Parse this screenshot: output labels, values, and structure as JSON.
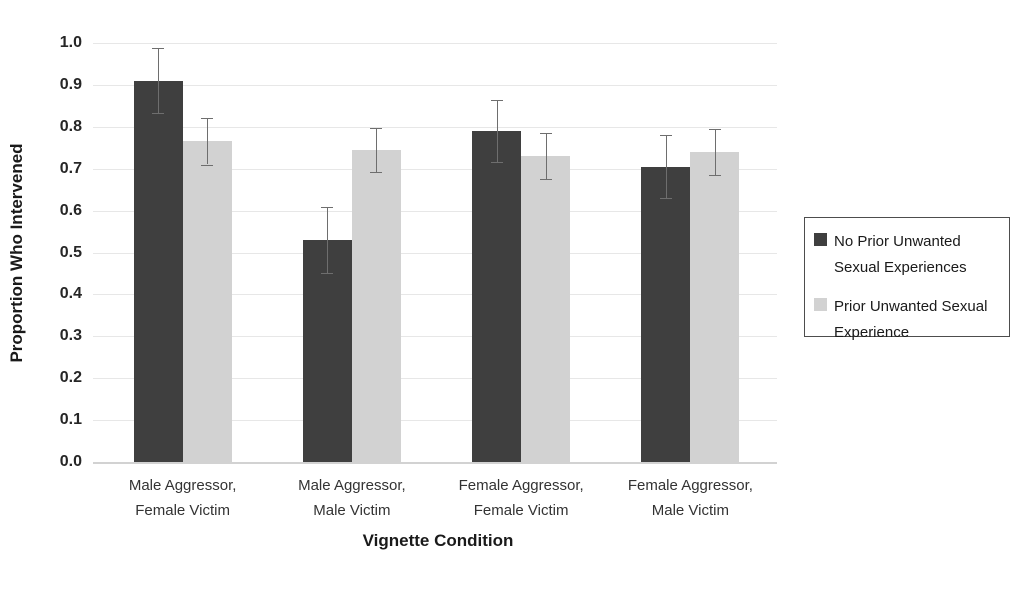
{
  "figure": {
    "background": "#ffffff"
  },
  "chart_data": {
    "type": "bar",
    "title": "",
    "xlabel": "Vignette Condition",
    "ylabel": "Proportion Who Intervened",
    "categories": [
      "Male Aggressor,\nFemale Victim",
      "Male Aggressor,\nMale Victim",
      "Female Aggressor,\nFemale Victim",
      "Female Aggressor,\nMale Victim"
    ],
    "series": [
      {
        "name": "No Prior Unwanted\nSexual Experiences",
        "color": "#3f3f3f",
        "values": [
          0.91,
          0.53,
          0.79,
          0.705
        ],
        "errors": [
          0.077,
          0.078,
          0.075,
          0.075
        ]
      },
      {
        "name": "Prior Unwanted Sexual\nExperience",
        "color": "#d2d2d2",
        "values": [
          0.765,
          0.745,
          0.73,
          0.74
        ],
        "errors": [
          0.055,
          0.053,
          0.055,
          0.055
        ]
      }
    ],
    "ylim": [
      0.0,
      1.0
    ],
    "yticks": [
      0.0,
      0.1,
      0.2,
      0.3,
      0.4,
      0.5,
      0.6,
      0.7,
      0.8,
      0.9,
      1.0
    ],
    "ytick_labels": [
      "0.0",
      "0.1",
      "0.2",
      "0.3",
      "0.4",
      "0.5",
      "0.6",
      "0.7",
      "0.8",
      "0.9",
      "1.0"
    ],
    "grid": true,
    "error_bars": true,
    "legend_position": "right",
    "colors": {
      "gridline": "#e7e7e7",
      "axis_line": "#d2d2d2",
      "error_bar": "#6e6e6e",
      "text": "#262626",
      "legend_border": "#4d4d4d"
    }
  }
}
